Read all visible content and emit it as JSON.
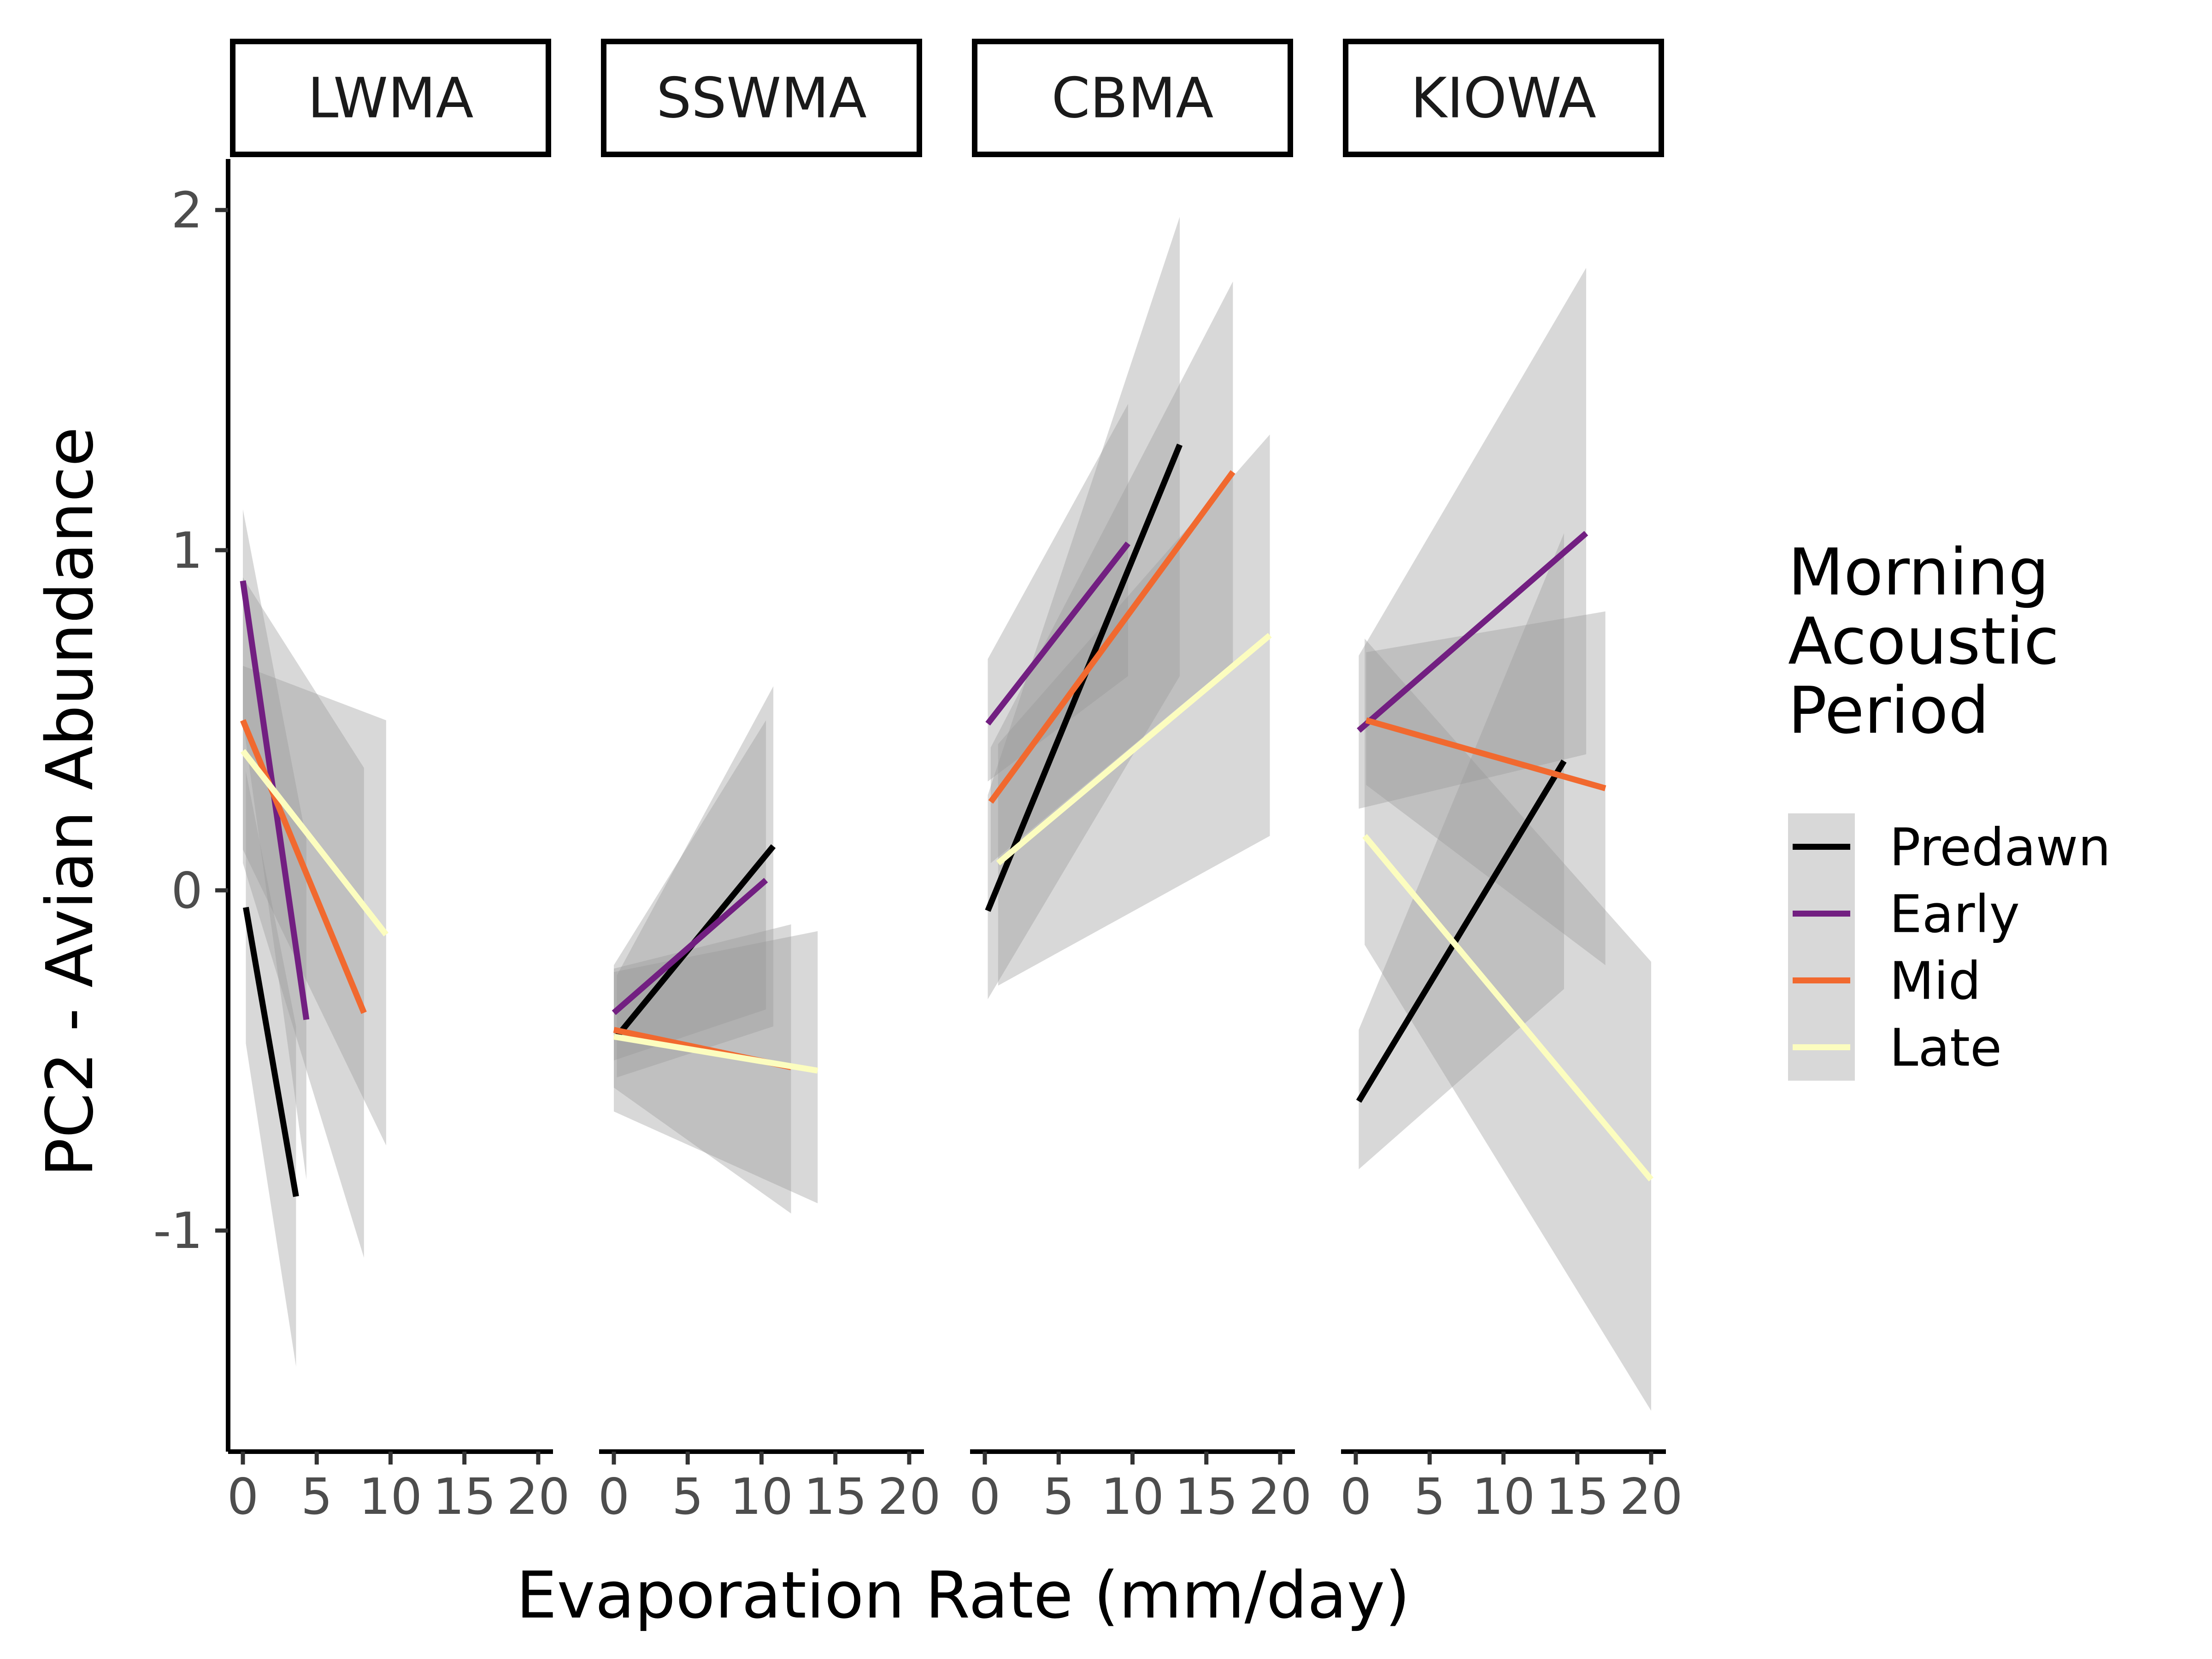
{
  "chart_data": {
    "type": "line",
    "xlabel": "Evaporation Rate (mm/day)",
    "ylabel": "PC2 - Avian Abundance",
    "xlim": [
      -1,
      21
    ],
    "ylim": [
      -1.65,
      2.15
    ],
    "x_ticks": [
      0,
      5,
      10,
      15,
      20
    ],
    "x_tick_labels": [
      "0",
      "5",
      "10",
      "15",
      "20"
    ],
    "y_ticks": [
      -1,
      0,
      1,
      2
    ],
    "y_tick_labels": [
      "-1",
      "0",
      "1",
      "2"
    ],
    "legend": {
      "title": [
        "Morning",
        "Acoustic",
        "Period"
      ],
      "position": "right"
    },
    "series_styles": [
      {
        "name": "Predawn",
        "color": "#000000"
      },
      {
        "name": "Early",
        "color": "#721f81"
      },
      {
        "name": "Mid",
        "color": "#f1692f"
      },
      {
        "name": "Late",
        "color": "#fcfdbf"
      }
    ],
    "ribbon_color": "#999999",
    "panels": [
      {
        "label": "LWMA",
        "series": [
          {
            "name": "Predawn",
            "x": [
              0.2,
              3.6
            ],
            "y": [
              -0.05,
              -0.9
            ],
            "lower": [
              -0.45,
              -1.4
            ],
            "upper": [
              0.35,
              -0.4
            ]
          },
          {
            "name": "Early",
            "x": [
              0.0,
              4.3
            ],
            "y": [
              0.91,
              -0.38
            ],
            "lower": [
              0.5,
              -0.85
            ],
            "upper": [
              1.12,
              0.15
            ]
          },
          {
            "name": "Mid",
            "x": [
              0.0,
              8.2
            ],
            "y": [
              0.5,
              -0.36
            ],
            "lower": [
              0.08,
              -1.08
            ],
            "upper": [
              0.92,
              0.36
            ]
          },
          {
            "name": "Late",
            "x": [
              0.0,
              9.7
            ],
            "y": [
              0.41,
              -0.13
            ],
            "lower": [
              0.12,
              -0.75
            ],
            "upper": [
              0.66,
              0.5
            ]
          }
        ]
      },
      {
        "label": "SSWMA",
        "series": [
          {
            "name": "Predawn",
            "x": [
              0.2,
              10.8
            ],
            "y": [
              -0.43,
              0.13
            ],
            "lower": [
              -0.55,
              -0.4
            ],
            "upper": [
              -0.25,
              0.6
            ]
          },
          {
            "name": "Early",
            "x": [
              0.0,
              10.3
            ],
            "y": [
              -0.36,
              0.03
            ],
            "lower": [
              -0.5,
              -0.35
            ],
            "upper": [
              -0.22,
              0.5
            ]
          },
          {
            "name": "Mid",
            "x": [
              0.0,
              12.0
            ],
            "y": [
              -0.41,
              -0.52
            ],
            "lower": [
              -0.58,
              -0.95
            ],
            "upper": [
              -0.23,
              -0.1
            ]
          },
          {
            "name": "Late",
            "x": [
              0.0,
              13.8
            ],
            "y": [
              -0.43,
              -0.53
            ],
            "lower": [
              -0.65,
              -0.92
            ],
            "upper": [
              -0.24,
              -0.12
            ]
          }
        ]
      },
      {
        "label": "CBMA",
        "series": [
          {
            "name": "Predawn",
            "x": [
              0.2,
              13.2
            ],
            "y": [
              -0.06,
              1.31
            ],
            "lower": [
              -0.32,
              0.63
            ],
            "upper": [
              0.28,
              1.98
            ]
          },
          {
            "name": "Early",
            "x": [
              0.2,
              9.7
            ],
            "y": [
              0.49,
              1.02
            ],
            "lower": [
              0.32,
              0.63
            ],
            "upper": [
              0.68,
              1.43
            ]
          },
          {
            "name": "Mid",
            "x": [
              0.4,
              16.8
            ],
            "y": [
              0.26,
              1.23
            ],
            "lower": [
              0.08,
              0.67
            ],
            "upper": [
              0.42,
              1.79
            ]
          },
          {
            "name": "Late",
            "x": [
              0.9,
              19.3
            ],
            "y": [
              0.08,
              0.75
            ],
            "lower": [
              -0.28,
              0.16
            ],
            "upper": [
              0.43,
              1.34
            ]
          }
        ]
      },
      {
        "label": "KIOWA",
        "series": [
          {
            "name": "Predawn",
            "x": [
              0.2,
              14.1
            ],
            "y": [
              -0.62,
              0.38
            ],
            "lower": [
              -0.82,
              -0.29
            ],
            "upper": [
              -0.41,
              1.05
            ]
          },
          {
            "name": "Early",
            "x": [
              0.2,
              15.6
            ],
            "y": [
              0.47,
              1.05
            ],
            "lower": [
              0.24,
              0.4
            ],
            "upper": [
              0.69,
              1.83
            ]
          },
          {
            "name": "Mid",
            "x": [
              0.7,
              16.9
            ],
            "y": [
              0.5,
              0.3
            ],
            "lower": [
              0.31,
              -0.22
            ],
            "upper": [
              0.7,
              0.82
            ]
          },
          {
            "name": "Late",
            "x": [
              0.6,
              20.0
            ],
            "y": [
              0.16,
              -0.85
            ],
            "lower": [
              -0.16,
              -1.53
            ],
            "upper": [
              0.74,
              -0.21
            ]
          }
        ]
      }
    ]
  }
}
